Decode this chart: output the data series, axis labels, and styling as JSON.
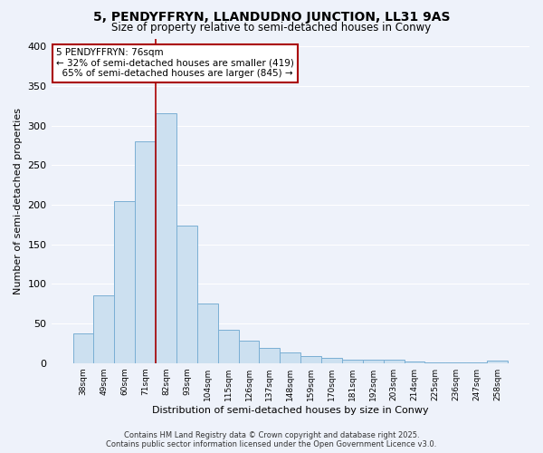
{
  "title": "5, PENDYFFRYN, LLANDUDNO JUNCTION, LL31 9AS",
  "subtitle": "Size of property relative to semi-detached houses in Conwy",
  "xlabel": "Distribution of semi-detached houses by size in Conwy",
  "ylabel": "Number of semi-detached properties",
  "bar_labels": [
    "38sqm",
    "49sqm",
    "60sqm",
    "71sqm",
    "82sqm",
    "93sqm",
    "104sqm",
    "115sqm",
    "126sqm",
    "137sqm",
    "148sqm",
    "159sqm",
    "170sqm",
    "181sqm",
    "192sqm",
    "203sqm",
    "214sqm",
    "225sqm",
    "236sqm",
    "247sqm",
    "258sqm"
  ],
  "bar_values": [
    38,
    86,
    204,
    280,
    315,
    174,
    75,
    42,
    28,
    19,
    13,
    9,
    7,
    4,
    4,
    4,
    2,
    1,
    1,
    1,
    3
  ],
  "bar_color": "#cce0f0",
  "bar_edge_color": "#7aafd4",
  "property_size": "76sqm",
  "property_name": "5 PENDYFFRYN",
  "pct_smaller": 32,
  "n_smaller": 419,
  "pct_larger": 65,
  "n_larger": 845,
  "annotation_box_color": "#ffffff",
  "annotation_box_edge": "#aa0000",
  "vline_color": "#aa0000",
  "background_color": "#eef2fa",
  "grid_color": "#ffffff",
  "footer_line1": "Contains HM Land Registry data © Crown copyright and database right 2025.",
  "footer_line2": "Contains public sector information licensed under the Open Government Licence v3.0.",
  "ylim": [
    0,
    410
  ],
  "yticks": [
    0,
    50,
    100,
    150,
    200,
    250,
    300,
    350,
    400
  ],
  "vline_x": 3.5
}
